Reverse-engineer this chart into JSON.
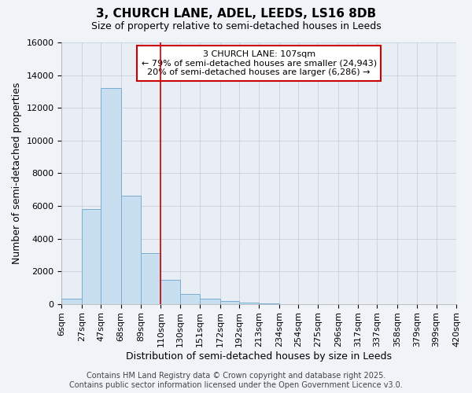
{
  "title_line1": "3, CHURCH LANE, ADEL, LEEDS, LS16 8DB",
  "title_line2": "Size of property relative to semi-detached houses in Leeds",
  "xlabel": "Distribution of semi-detached houses by size in Leeds",
  "ylabel": "Number of semi-detached properties",
  "annotation_line1": "3 CHURCH LANE: 107sqm",
  "annotation_line2": "← 79% of semi-detached houses are smaller (24,943)",
  "annotation_line3": "20% of semi-detached houses are larger (6,286) →",
  "footer_line1": "Contains HM Land Registry data © Crown copyright and database right 2025.",
  "footer_line2": "Contains public sector information licensed under the Open Government Licence v3.0.",
  "property_size": 107,
  "bin_edges": [
    6,
    27,
    47,
    68,
    89,
    110,
    130,
    151,
    172,
    192,
    213,
    234,
    254,
    275,
    296,
    317,
    337,
    358,
    379,
    399,
    420
  ],
  "bin_labels": [
    "6sqm",
    "27sqm",
    "47sqm",
    "68sqm",
    "89sqm",
    "110sqm",
    "130sqm",
    "151sqm",
    "172sqm",
    "192sqm",
    "213sqm",
    "234sqm",
    "254sqm",
    "275sqm",
    "296sqm",
    "317sqm",
    "337sqm",
    "358sqm",
    "379sqm",
    "399sqm",
    "420sqm"
  ],
  "bar_values": [
    300,
    5800,
    13200,
    6600,
    3100,
    1500,
    600,
    300,
    200,
    100,
    50,
    10,
    5,
    3,
    1,
    1,
    0,
    0,
    0,
    0
  ],
  "bar_color": "#c8dff0",
  "bar_edgecolor": "#7aadd0",
  "vline_color": "#cc0000",
  "vline_x": 110,
  "ylim": [
    0,
    16000
  ],
  "yticks": [
    0,
    2000,
    4000,
    6000,
    8000,
    10000,
    12000,
    14000,
    16000
  ],
  "grid_color": "#c0ccd8",
  "bg_color": "#f0f4f8",
  "axes_bg_color": "#e8eef4",
  "annotation_box_color": "#cc0000",
  "title_fontsize": 11,
  "subtitle_fontsize": 9,
  "axis_label_fontsize": 9,
  "tick_fontsize": 8,
  "footer_fontsize": 7,
  "annotation_fontsize": 8
}
